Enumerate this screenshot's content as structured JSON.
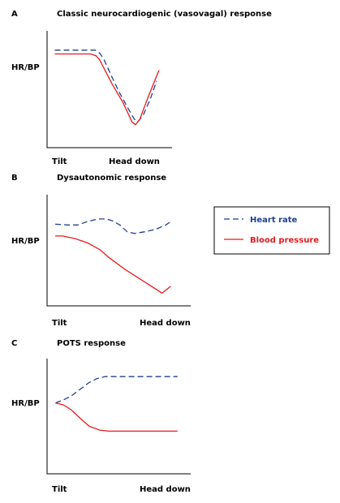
{
  "colors": {
    "heart_rate": "#1f3f8f",
    "blood_pressure": "#e8191c",
    "axis": "#000000",
    "background": "#ffffff"
  },
  "legend": {
    "items": [
      {
        "label": "Heart rate",
        "color": "#1f3f8f",
        "style": "dashed"
      },
      {
        "label": "Blood pressure",
        "color": "#e8191c",
        "style": "solid"
      }
    ]
  },
  "chart_data": [
    {
      "type": "line",
      "panel": "A",
      "title": "Classic neurocardiogenic (vasovagal) response",
      "ylabel": "HR/BP",
      "x_tick_labels": [
        "Tilt",
        "Head down"
      ],
      "xlim": [
        0,
        1
      ],
      "ylim": [
        0,
        1
      ],
      "series": [
        {
          "name": "Heart rate",
          "style": "dashed",
          "x": [
            0.04,
            0.4,
            0.44,
            0.48,
            0.55,
            0.62,
            0.7,
            0.75,
            0.78,
            0.83,
            0.89,
            0.95
          ],
          "y": [
            0.9,
            0.9,
            0.87,
            0.8,
            0.62,
            0.45,
            0.28,
            0.18,
            0.15,
            0.22,
            0.38,
            0.58
          ]
        },
        {
          "name": "Blood pressure",
          "style": "solid",
          "x": [
            0.04,
            0.36,
            0.41,
            0.44,
            0.55,
            0.65,
            0.73,
            0.76,
            0.8,
            0.87,
            0.97
          ],
          "y": [
            0.86,
            0.86,
            0.84,
            0.8,
            0.55,
            0.35,
            0.15,
            0.12,
            0.18,
            0.4,
            0.69
          ]
        }
      ]
    },
    {
      "type": "line",
      "panel": "B",
      "title": "Dysautonomic response",
      "ylabel": "HR/BP",
      "x_tick_labels": [
        "Tilt",
        "Head down"
      ],
      "xlim": [
        0,
        1
      ],
      "ylim": [
        0,
        1
      ],
      "series": [
        {
          "name": "Heart rate",
          "style": "dashed",
          "x": [
            0.04,
            0.14,
            0.22,
            0.3,
            0.38,
            0.45,
            0.5,
            0.56,
            0.62,
            0.68,
            0.76,
            0.85,
            0.93,
            0.98
          ],
          "y": [
            0.75,
            0.74,
            0.74,
            0.78,
            0.81,
            0.81,
            0.79,
            0.74,
            0.66,
            0.64,
            0.66,
            0.69,
            0.74,
            0.79
          ]
        },
        {
          "name": "Blood pressure",
          "style": "solid",
          "x": [
            0.04,
            0.1,
            0.2,
            0.3,
            0.4,
            0.47,
            0.6,
            0.75,
            0.9,
            0.97
          ],
          "y": [
            0.61,
            0.61,
            0.58,
            0.53,
            0.45,
            0.36,
            0.22,
            0.08,
            -0.06,
            0.02
          ]
        }
      ]
    },
    {
      "type": "line",
      "panel": "C",
      "title": "POTS response",
      "ylabel": "HR/BP",
      "x_tick_labels": [
        "Tilt",
        "Head down"
      ],
      "xlim": [
        0,
        1
      ],
      "ylim": [
        0,
        1
      ],
      "series": [
        {
          "name": "Heart rate",
          "style": "dashed",
          "x": [
            0.04,
            0.1,
            0.16,
            0.24,
            0.3,
            0.36,
            0.42,
            0.5,
            0.7,
            0.98
          ],
          "y": [
            0.57,
            0.6,
            0.64,
            0.72,
            0.78,
            0.82,
            0.84,
            0.84,
            0.84,
            0.84
          ]
        },
        {
          "name": "Blood pressure",
          "style": "solid",
          "x": [
            0.04,
            0.1,
            0.16,
            0.24,
            0.3,
            0.38,
            0.45,
            0.5,
            0.7,
            0.98
          ],
          "y": [
            0.57,
            0.55,
            0.5,
            0.4,
            0.33,
            0.29,
            0.28,
            0.28,
            0.28,
            0.28
          ]
        }
      ]
    }
  ]
}
